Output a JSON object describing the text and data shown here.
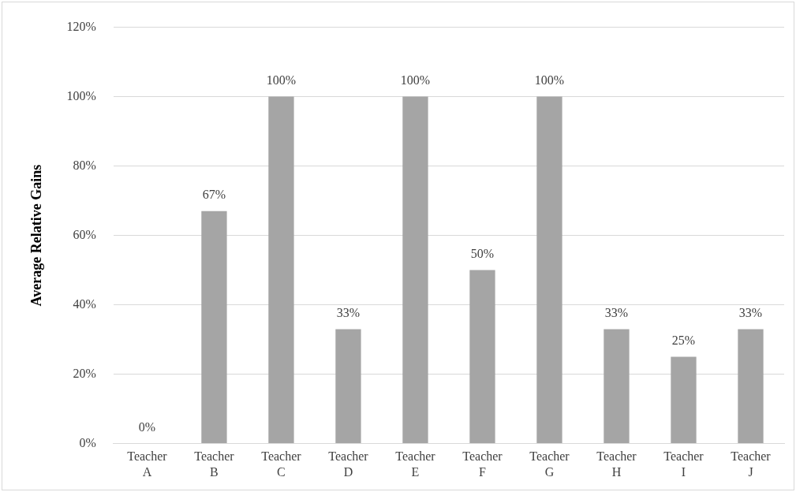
{
  "chart_data": {
    "type": "bar",
    "ylabel": "Average Relative Gains",
    "categories": [
      "Teacher A",
      "Teacher B",
      "Teacher C",
      "Teacher D",
      "Teacher E",
      "Teacher F",
      "Teacher G",
      "Teacher H",
      "Teacher I",
      "Teacher J"
    ],
    "values": [
      0,
      67,
      100,
      33,
      100,
      50,
      100,
      33,
      25,
      33
    ],
    "value_labels": [
      "0%",
      "67%",
      "100%",
      "33%",
      "100%",
      "50%",
      "100%",
      "33%",
      "25%",
      "33%"
    ],
    "color": "#a5a5a5",
    "ylim": [
      0,
      120
    ],
    "yticks": [
      {
        "value": 0,
        "label": "0%"
      },
      {
        "value": 20,
        "label": "20%"
      },
      {
        "value": 40,
        "label": "40%"
      },
      {
        "value": 60,
        "label": "60%"
      },
      {
        "value": 80,
        "label": "80%"
      },
      {
        "value": 100,
        "label": "100%"
      },
      {
        "value": 120,
        "label": "120%"
      }
    ],
    "grid": "y",
    "legend": false
  }
}
